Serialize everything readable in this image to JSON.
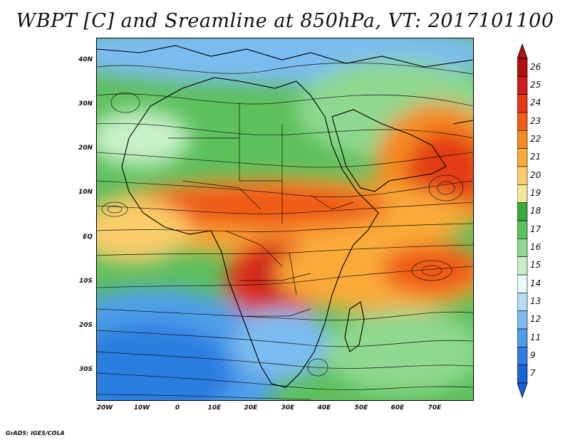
{
  "figure": {
    "title": "WBPT [C] and Sreamline at 850hPa, VT: 2017101100",
    "credit": "GrADS: IGES/COLA"
  },
  "axes": {
    "latitude_labels": [
      "40N",
      "30N",
      "20N",
      "10N",
      "EQ",
      "10S",
      "20S",
      "30S"
    ],
    "latitude_values": [
      40,
      30,
      20,
      10,
      0,
      -10,
      -20,
      -30
    ],
    "longitude_labels": [
      "20W",
      "10W",
      "0",
      "10E",
      "20E",
      "30E",
      "40E",
      "50E",
      "60E",
      "70E"
    ],
    "longitude_values": [
      -20,
      -10,
      0,
      10,
      20,
      30,
      40,
      50,
      60,
      70
    ],
    "extent": {
      "lon_min": -20,
      "lon_max": 80,
      "lat_min": -36,
      "lat_max": 45
    }
  },
  "colorbar": {
    "labels": [
      "26",
      "25",
      "24",
      "23",
      "22",
      "21",
      "20",
      "19",
      "18",
      "17",
      "16",
      "15",
      "14",
      "13",
      "12",
      "11",
      "9",
      "7"
    ],
    "colors": [
      "#b01010",
      "#cc1c1c",
      "#e23a16",
      "#f05a14",
      "#f58a1e",
      "#f9aa38",
      "#f9cd6a",
      "#f5e79a",
      "#38a838",
      "#5cc05c",
      "#8fd88f",
      "#c8f0c8",
      "#e8faf8",
      "#b4dcf5",
      "#7cbcf0",
      "#4d9ee8",
      "#2c7ee0",
      "#1862d8"
    ],
    "top_arrow_color": "#b01010",
    "bottom_arrow_color": "#1862d8"
  },
  "field_colors": {
    "cold": "#2c7ee0",
    "cool": "#7cbcf0",
    "mild": "#5cc05c",
    "warm": "#f9aa38",
    "hot": "#f05a14",
    "very_hot": "#cc1c1c",
    "streamline": "#111111",
    "coastline": "#000000"
  }
}
